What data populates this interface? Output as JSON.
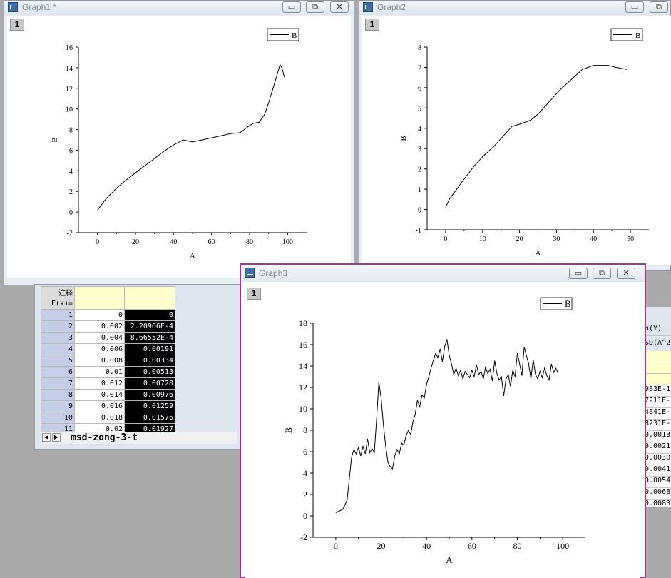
{
  "windows": {
    "graph1": {
      "title": "Graph1 *",
      "layer": "1"
    },
    "graph2": {
      "title": "Graph2",
      "layer": "1"
    },
    "graph3": {
      "title": "Graph3",
      "layer": "1"
    }
  },
  "title_buttons": {
    "minimize": "▭",
    "restore": "⧉",
    "close": "✕"
  },
  "sheet": {
    "label_row_header": "注释",
    "fx_row_header": "F(x)=",
    "rows": [
      {
        "n": "1",
        "a": "0",
        "b": "0"
      },
      {
        "n": "2",
        "a": "0.002",
        "b": "2.20966E-4"
      },
      {
        "n": "3",
        "a": "0.004",
        "b": "8.66552E-4"
      },
      {
        "n": "4",
        "a": "0.006",
        "b": "0.00191"
      },
      {
        "n": "5",
        "a": "0.008",
        "b": "0.00334"
      },
      {
        "n": "6",
        "a": "0.01",
        "b": "0.00513"
      },
      {
        "n": "7",
        "a": "0.012",
        "b": "0.00728"
      },
      {
        "n": "8",
        "a": "0.014",
        "b": "0.00976"
      },
      {
        "n": "9",
        "a": "0.016",
        "b": "0.01259"
      },
      {
        "n": "10",
        "a": "0.018",
        "b": "0.01576"
      },
      {
        "n": "11",
        "a": "0.02",
        "b": "0.01927"
      }
    ],
    "tab_name": "msd-zong-3-t"
  },
  "right_sheet": {
    "header1": "n(Y)",
    "header2": "SD(A^2)",
    "cells": [
      "983E-1",
      "7211E-",
      "4841E-",
      "8231E-",
      "0.0013",
      "0.0021",
      "0.0030",
      "0.0041",
      "0.0054",
      "0.0068",
      "0.0083"
    ]
  },
  "chart_data": [
    {
      "type": "line",
      "xlabel": "A",
      "ylabel": "B",
      "legend": "B",
      "legend_position": "top-right",
      "xlim": [
        -10,
        110
      ],
      "ylim": [
        -2,
        16
      ],
      "xticks": [
        0,
        20,
        40,
        60,
        80,
        100
      ],
      "yticks": [
        -2,
        0,
        2,
        4,
        6,
        8,
        10,
        12,
        14,
        16
      ],
      "series": [
        {
          "name": "B",
          "x": [
            0,
            5,
            10,
            15,
            20,
            25,
            30,
            35,
            40,
            45,
            50,
            55,
            60,
            65,
            70,
            75,
            80,
            82,
            85,
            88,
            90,
            92,
            94,
            96,
            97,
            98,
            98.5
          ],
          "y": [
            0.2,
            1.4,
            2.3,
            3.1,
            3.8,
            4.5,
            5.2,
            5.9,
            6.5,
            7.0,
            6.8,
            7.0,
            7.2,
            7.4,
            7.6,
            7.7,
            8.4,
            8.6,
            8.7,
            9.5,
            10.6,
            11.8,
            13.0,
            14.3,
            14.0,
            13.3,
            13.0
          ]
        }
      ]
    },
    {
      "type": "line",
      "xlabel": "A",
      "ylabel": "B",
      "legend": "B",
      "legend_position": "top-right",
      "xlim": [
        -5,
        55
      ],
      "ylim": [
        -1,
        8
      ],
      "xticks": [
        0,
        10,
        20,
        30,
        40,
        50
      ],
      "yticks": [
        -1,
        0,
        1,
        2,
        3,
        4,
        5,
        6,
        7,
        8
      ],
      "series": [
        {
          "name": "B",
          "x": [
            0,
            1,
            3,
            5,
            8,
            10,
            13,
            16,
            18,
            20,
            23,
            25,
            28,
            31,
            34,
            37,
            40,
            42,
            44,
            46,
            49
          ],
          "y": [
            0.1,
            0.5,
            1.0,
            1.5,
            2.2,
            2.6,
            3.1,
            3.7,
            4.1,
            4.2,
            4.4,
            4.7,
            5.3,
            5.9,
            6.4,
            6.9,
            7.1,
            7.1,
            7.1,
            7.0,
            6.9
          ]
        }
      ]
    },
    {
      "type": "line",
      "xlabel": "A",
      "ylabel": "B",
      "legend": "B",
      "legend_position": "top-right",
      "xlim": [
        -10,
        110
      ],
      "ylim": [
        -2,
        18
      ],
      "xticks": [
        0,
        20,
        40,
        60,
        80,
        100
      ],
      "yticks": [
        -2,
        0,
        2,
        4,
        6,
        8,
        10,
        12,
        14,
        16,
        18
      ],
      "series": [
        {
          "name": "B",
          "x": [
            0,
            1,
            2,
            3,
            4,
            5,
            6,
            7,
            8,
            9,
            10,
            11,
            12,
            13,
            14,
            15,
            16,
            17,
            18,
            19,
            20,
            21,
            22,
            23,
            24,
            25,
            26,
            27,
            28,
            29,
            30,
            31,
            32,
            33,
            34,
            35,
            36,
            37,
            38,
            39,
            40,
            41,
            42,
            43,
            44,
            45,
            46,
            47,
            48,
            49,
            50,
            51,
            52,
            53,
            54,
            55,
            56,
            57,
            58,
            59,
            60,
            61,
            62,
            63,
            64,
            65,
            66,
            67,
            68,
            69,
            70,
            71,
            72,
            73,
            74,
            75,
            76,
            77,
            78,
            79,
            80,
            81,
            82,
            83,
            84,
            85,
            86,
            87,
            88,
            89,
            90,
            91,
            92,
            93,
            94,
            95,
            96,
            97,
            98
          ],
          "y": [
            0.3,
            0.4,
            0.5,
            0.6,
            1.0,
            1.5,
            3.5,
            5.5,
            6.2,
            5.8,
            6.4,
            5.6,
            6.5,
            5.8,
            7.2,
            5.9,
            6.3,
            5.9,
            9.0,
            12.5,
            11.0,
            8.5,
            6.5,
            5.0,
            4.6,
            4.4,
            5.6,
            6.2,
            5.8,
            6.8,
            6.6,
            7.5,
            8.0,
            7.6,
            8.8,
            9.5,
            10.8,
            10.2,
            11.3,
            11.0,
            12.3,
            13.0,
            13.8,
            14.5,
            15.2,
            14.8,
            15.6,
            14.4,
            15.8,
            16.5,
            15.0,
            14.2,
            13.2,
            13.8,
            13.1,
            13.6,
            12.8,
            13.5,
            13.2,
            12.9,
            13.6,
            13.0,
            14.1,
            13.2,
            13.5,
            12.8,
            13.9,
            13.3,
            13.7,
            12.6,
            14.5,
            13.3,
            12.7,
            13.0,
            11.2,
            12.8,
            13.2,
            12.1,
            13.6,
            13.0,
            15.2,
            14.2,
            13.1,
            15.8,
            15.0,
            14.2,
            12.8,
            14.6,
            13.2,
            12.8,
            13.5,
            12.9,
            13.8,
            13.1,
            12.7,
            14.2,
            13.4,
            13.8,
            13.3
          ]
        }
      ]
    }
  ]
}
